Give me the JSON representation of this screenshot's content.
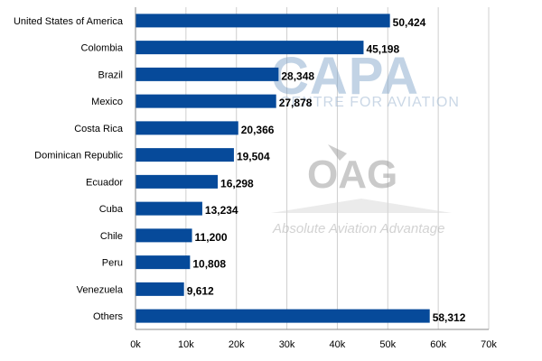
{
  "chart_data": {
    "type": "bar",
    "orientation": "horizontal",
    "categories": [
      "United States of America",
      "Colombia",
      "Brazil",
      "Mexico",
      "Costa Rica",
      "Dominican Republic",
      "Ecuador",
      "Cuba",
      "Chile",
      "Peru",
      "Venezuela",
      "Others"
    ],
    "values": [
      50424,
      45198,
      28348,
      27878,
      20366,
      19504,
      16298,
      13234,
      11200,
      10808,
      9612,
      58312
    ],
    "value_labels": [
      "50,424",
      "45,198",
      "28,348",
      "27,878",
      "20,366",
      "19,504",
      "16,298",
      "13,234",
      "11,200",
      "10,808",
      "9,612",
      "58,312"
    ],
    "xlim": [
      0,
      70000
    ],
    "xticks": [
      0,
      10000,
      20000,
      30000,
      40000,
      50000,
      60000,
      70000
    ],
    "xtick_labels": [
      "0k",
      "10k",
      "20k",
      "30k",
      "40k",
      "50k",
      "60k",
      "70k"
    ],
    "grid": true,
    "bar_color": "#064a9a",
    "title": "",
    "xlabel": "",
    "ylabel": ""
  },
  "watermarks": {
    "capa": {
      "logo": "CAPA",
      "tagline": "CENTRE FOR AVIATION"
    },
    "oag": {
      "logo": "OAG",
      "tagline": "Absolute Aviation Advantage"
    }
  }
}
